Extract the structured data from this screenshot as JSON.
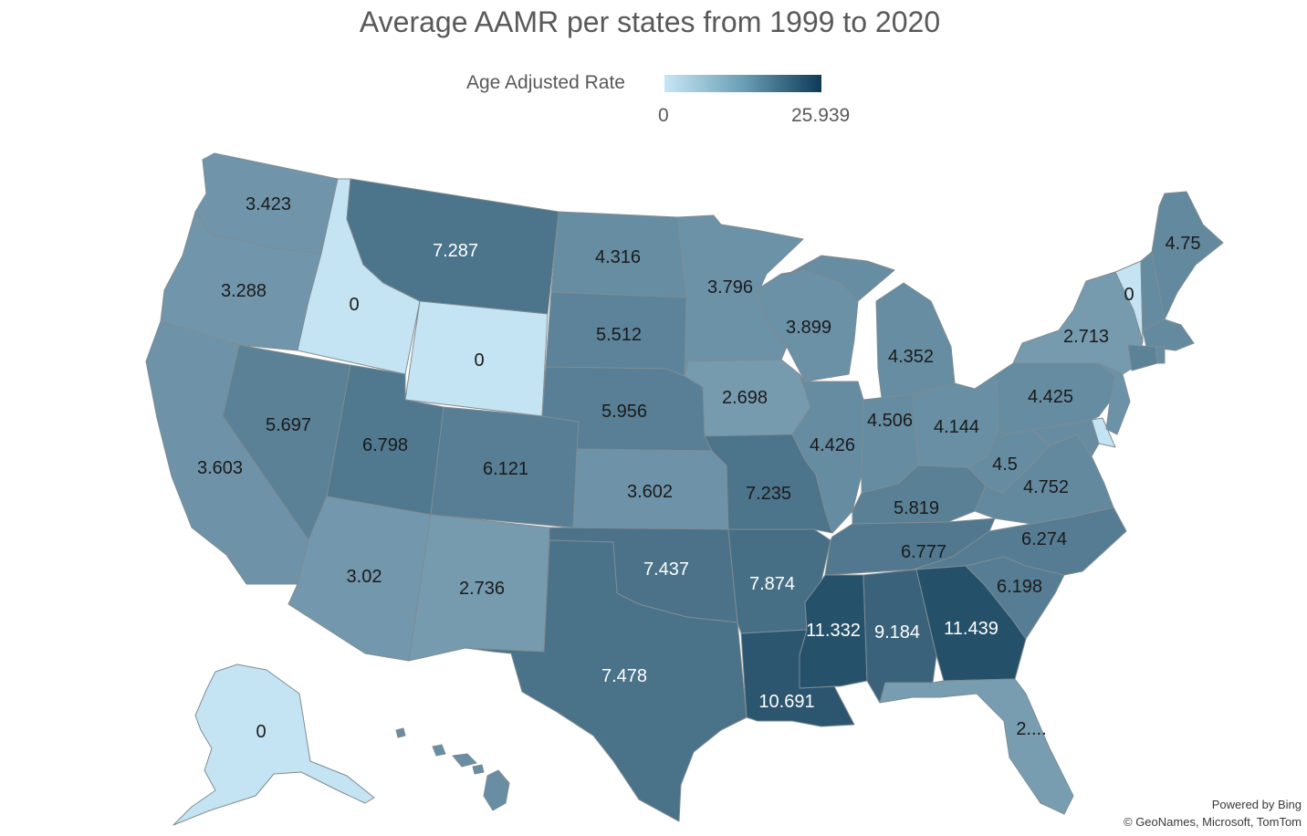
{
  "title": "Average AAMR per states from 1999 to 2020",
  "legend": {
    "label": "Age Adjusted Rate",
    "min": "0",
    "max": "25.939",
    "min_value": 0,
    "max_value": 25.939,
    "color_low": "#c7e6f5",
    "color_high": "#0e3a55"
  },
  "attribution": {
    "line1": "Powered by Bing",
    "line2": "© GeoNames, Microsoft, TomTom"
  },
  "chart_data": {
    "type": "choropleth",
    "title": "Average AAMR per states from 1999 to 2020",
    "measure": "Age Adjusted Rate",
    "range": [
      0,
      25.939
    ],
    "states": [
      {
        "state": "Washington",
        "value": 3.423,
        "label": "3.423"
      },
      {
        "state": "Oregon",
        "value": 3.288,
        "label": "3.288"
      },
      {
        "state": "California",
        "value": 3.603,
        "label": "3.603"
      },
      {
        "state": "Idaho",
        "value": 0,
        "label": "0"
      },
      {
        "state": "Nevada",
        "value": 5.697,
        "label": "5.697"
      },
      {
        "state": "Montana",
        "value": 7.287,
        "label": "7.287"
      },
      {
        "state": "Wyoming",
        "value": 0,
        "label": "0"
      },
      {
        "state": "Utah",
        "value": 6.798,
        "label": "6.798"
      },
      {
        "state": "Arizona",
        "value": 3.02,
        "label": "3.02"
      },
      {
        "state": "Colorado",
        "value": 6.121,
        "label": "6.121"
      },
      {
        "state": "New Mexico",
        "value": 2.736,
        "label": "2.736"
      },
      {
        "state": "North Dakota",
        "value": 4.316,
        "label": "4.316"
      },
      {
        "state": "South Dakota",
        "value": 5.512,
        "label": "5.512"
      },
      {
        "state": "Nebraska",
        "value": 5.956,
        "label": "5.956"
      },
      {
        "state": "Kansas",
        "value": 3.602,
        "label": "3.602"
      },
      {
        "state": "Oklahoma",
        "value": 7.437,
        "label": "7.437"
      },
      {
        "state": "Texas",
        "value": 7.478,
        "label": "7.478"
      },
      {
        "state": "Minnesota",
        "value": 3.796,
        "label": "3.796"
      },
      {
        "state": "Iowa",
        "value": 2.698,
        "label": "2.698"
      },
      {
        "state": "Missouri",
        "value": 7.235,
        "label": "7.235"
      },
      {
        "state": "Arkansas",
        "value": 7.874,
        "label": "7.874"
      },
      {
        "state": "Louisiana",
        "value": 10.691,
        "label": "10.691"
      },
      {
        "state": "Wisconsin",
        "value": 3.899,
        "label": "3.899"
      },
      {
        "state": "Illinois",
        "value": 4.426,
        "label": "4.426"
      },
      {
        "state": "Michigan",
        "value": 4.352,
        "label": "4.352"
      },
      {
        "state": "Indiana",
        "value": 4.506,
        "label": "4.506"
      },
      {
        "state": "Ohio",
        "value": 4.144,
        "label": "4.144"
      },
      {
        "state": "Kentucky",
        "value": 5.819,
        "label": "5.819"
      },
      {
        "state": "Tennessee",
        "value": 6.777,
        "label": "6.777"
      },
      {
        "state": "Mississippi",
        "value": 11.332,
        "label": "11.332"
      },
      {
        "state": "Alabama",
        "value": 9.184,
        "label": "9.184"
      },
      {
        "state": "Georgia",
        "value": 11.439,
        "label": "11.439"
      },
      {
        "state": "Florida",
        "value": 2.5,
        "label": "2...."
      },
      {
        "state": "South Carolina",
        "value": 6.198,
        "label": "6.198"
      },
      {
        "state": "North Carolina",
        "value": 6.274,
        "label": "6.274"
      },
      {
        "state": "Virginia",
        "value": 4.752,
        "label": "4.752"
      },
      {
        "state": "West Virginia",
        "value": 4.5,
        "label": "4.5"
      },
      {
        "state": "Pennsylvania",
        "value": 4.425,
        "label": "4.425"
      },
      {
        "state": "New York",
        "value": 2.713,
        "label": "2.713"
      },
      {
        "state": "Vermont",
        "value": 0,
        "label": "0"
      },
      {
        "state": "Maine",
        "value": 4.75,
        "label": "4.75"
      },
      {
        "state": "New Hampshire",
        "value": 4.6,
        "label": ""
      },
      {
        "state": "Massachusetts",
        "value": 4.7,
        "label": ""
      },
      {
        "state": "Connecticut",
        "value": 5.6,
        "label": ""
      },
      {
        "state": "Rhode Island",
        "value": 4.5,
        "label": ""
      },
      {
        "state": "New Jersey",
        "value": 3.8,
        "label": ""
      },
      {
        "state": "Delaware",
        "value": 0,
        "label": ""
      },
      {
        "state": "Maryland",
        "value": 4.4,
        "label": ""
      },
      {
        "state": "Alaska",
        "value": 0,
        "label": "0"
      },
      {
        "state": "Hawaii",
        "value": 4.2,
        "label": ""
      }
    ]
  }
}
